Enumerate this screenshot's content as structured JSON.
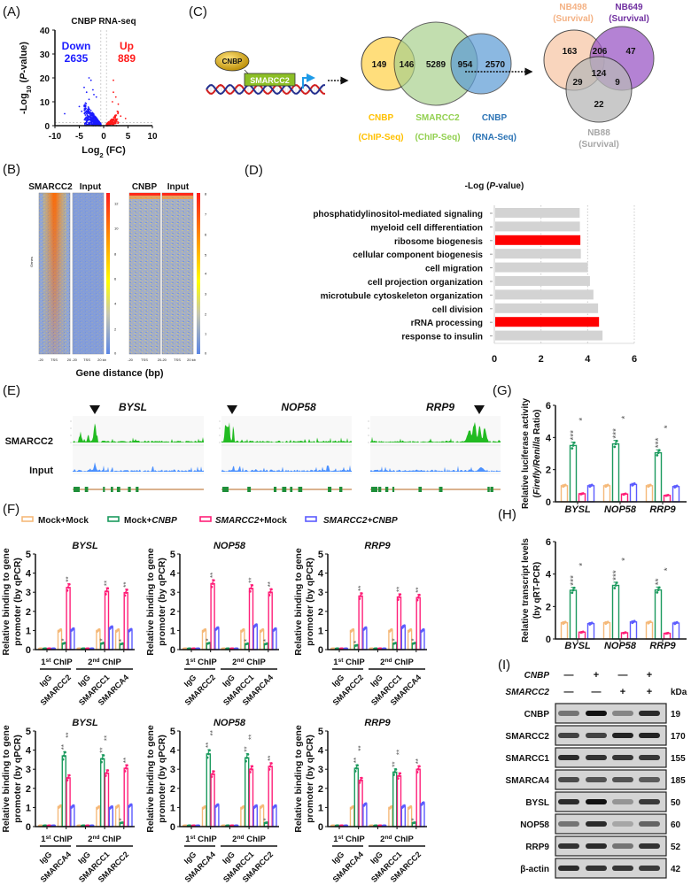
{
  "panel_labels": {
    "A": "(A)",
    "B": "(B)",
    "C": "(C)",
    "D": "(D)",
    "E": "(E)",
    "F": "(F)",
    "G": "(G)",
    "H": "(H)",
    "I": "(I)"
  },
  "colors": {
    "mock_mock": "#f5b979",
    "mock_cnbp": "#1b9a5e",
    "smarcc2_mock": "#ff1f78",
    "smarcc2_cnbp": "#5b5bff",
    "up": "#ff1a1a",
    "down": "#1a1aff",
    "go_highlight": "#ff0000",
    "go_default": "#d3d3d3",
    "star": "#555555"
  },
  "heatmap": {
    "titles": [
      "SMARCC2",
      "Input",
      "CNBP",
      "Input"
    ],
    "ylabel": "Genes",
    "xlabel": "Gene distance (bp)",
    "xticks": [
      "-20",
      "TSS",
      "20",
      "-20",
      "TSS",
      "20 kb"
    ],
    "colorbar1_ticks": [
      12,
      10,
      8,
      6,
      4,
      2,
      0
    ],
    "colorbar2_ticks": [
      8,
      7,
      6,
      5,
      4,
      3,
      2,
      1,
      0
    ]
  },
  "schematic": {
    "protein": "CNBP",
    "gene": "SMARCC2"
  },
  "venn1": {
    "sets": [
      {
        "name": "CNBP",
        "sub": "(ChIP-Seq)",
        "color": "#ffc000"
      },
      {
        "name": "SMARCC2",
        "sub": "(ChIP-Seq)",
        "color": "#92d050"
      },
      {
        "name": "CNBP",
        "sub": "(RNA-Seq)",
        "color": "#2e75b6"
      }
    ],
    "counts": {
      "cnbp_chip_only": 149,
      "cnbp_chip_smarcc2": 146,
      "smarcc2_only": 5289,
      "smarcc2_cnbp_rna": 954,
      "cnbp_rna_only": 2570
    }
  },
  "venn2": {
    "sets": [
      {
        "name": "NB498",
        "sub": "(Survival)",
        "color": "#f4b183"
      },
      {
        "name": "NB649",
        "sub": "(Survival)",
        "color": "#7030a0"
      },
      {
        "name": "NB88",
        "sub": "(Survival)",
        "color": "#a6a6a6"
      }
    ],
    "counts": {
      "nb498_only": 163,
      "nb498_nb649": 206,
      "nb649_only": 47,
      "all": 124,
      "nb498_nb88": 29,
      "nb649_nb88": 9,
      "nb88_only": 22
    }
  },
  "tracks": {
    "genes": [
      "BYSL",
      "NOP58",
      "RRP9"
    ],
    "rows": [
      "SMARCC2",
      "Input"
    ]
  },
  "legend": [
    [
      {
        "t": "Mock+Mock"
      }
    ],
    [
      {
        "t": "Mock+"
      },
      {
        "t": "CNBP",
        "i": 1
      }
    ],
    [
      {
        "t": "SMARCC2",
        "i": 1
      },
      {
        "t": "+Mock"
      }
    ],
    [
      {
        "t": "SMARCC2+CNBP",
        "i": 1
      }
    ]
  ],
  "chart_data": [
    {
      "id": "A",
      "type": "scatter",
      "title": "CNBP RNA-seq",
      "xlabel": [
        {
          "t": "Log"
        },
        {
          "t": "2",
          "s": "sub"
        },
        {
          "t": " (FC)"
        }
      ],
      "ylabel": [
        {
          "t": "-Log"
        },
        {
          "t": "10",
          "s": "sub"
        },
        {
          "t": " ("
        },
        {
          "t": "P",
          "i": 1
        },
        {
          "t": "-value)"
        }
      ],
      "xlim": [
        -10,
        10
      ],
      "ylim": [
        0,
        40
      ],
      "xticks": [
        -10,
        -5,
        0,
        5,
        10
      ],
      "yticks": [
        0,
        10,
        20,
        30,
        40
      ],
      "annotations": {
        "down_label": "Down",
        "down_count": "2635",
        "up_label": "Up",
        "up_count": "889"
      },
      "thresholds": {
        "log2fc": 0.58,
        "neg_log10_p": 1.3
      }
    },
    {
      "id": "D",
      "type": "bar",
      "orientation": "horizontal",
      "title": [
        {
          "t": "-Log ("
        },
        {
          "t": "P",
          "i": 1
        },
        {
          "t": "-value)"
        }
      ],
      "categories": [
        "phosphatidylinositol-mediated signaling",
        "myeloid cell differentiation",
        "ribosome biogenesis",
        "cellular component biogenesis",
        "cell migration",
        "cell projection organization",
        "microtubule cytoskeleton organization",
        "cell division",
        "rRNA processing",
        "response to insulin"
      ],
      "values": [
        3.62,
        3.63,
        3.65,
        3.67,
        3.97,
        4.06,
        4.21,
        4.41,
        4.45,
        4.6
      ],
      "highlighted": [
        false,
        false,
        true,
        false,
        false,
        false,
        false,
        false,
        true,
        false
      ],
      "xlim": [
        0,
        6
      ],
      "xticks": [
        0,
        2,
        4,
        6
      ],
      "grid": true
    },
    {
      "id": "F1",
      "type": "bar",
      "title": "BYSL",
      "ylim": [
        0,
        5
      ],
      "yticks": [
        0,
        1,
        2,
        3,
        4,
        5
      ],
      "ylabel": [
        "Relative binding to gene",
        "promoter (by qPCR)"
      ],
      "brackets": [
        [
          {
            "t": "1"
          },
          {
            "t": "st",
            "s": "sup"
          },
          {
            "t": " ChIP"
          }
        ],
        [
          {
            "t": "2"
          },
          {
            "t": "nd",
            "s": "sup"
          },
          {
            "t": " ChIP"
          }
        ]
      ],
      "categories": [
        "IgG",
        "SMARCC2",
        "IgG",
        "SMARCC1",
        "SMARCA4"
      ],
      "series_names": [
        "Mock+Mock",
        "Mock+CNBP",
        "SMARCC2+Mock",
        "SMARCC2+CNBP"
      ],
      "values": [
        [
          0.05,
          0.05,
          0.05,
          0.05
        ],
        [
          1.0,
          0.33,
          3.25,
          1.05
        ],
        [
          0.05,
          0.05,
          0.05,
          0.05
        ],
        [
          1.0,
          0.33,
          3.05,
          1.15
        ],
        [
          1.0,
          0.3,
          2.98,
          1.02
        ]
      ],
      "stars": [
        [
          "",
          "",
          "",
          ""
        ],
        [
          "",
          "*",
          "**",
          ""
        ],
        [
          "",
          "",
          "",
          ""
        ],
        [
          "",
          "*",
          "**",
          ""
        ],
        [
          "",
          "*",
          "**",
          ""
        ]
      ]
    },
    {
      "id": "F2",
      "type": "bar",
      "title": "NOP58",
      "ylim": [
        0,
        5
      ],
      "yticks": [
        0,
        1,
        2,
        3,
        4,
        5
      ],
      "ylabel": [
        "Relative binding to gene",
        "promoter (by qPCR)"
      ],
      "brackets": [
        [
          {
            "t": "1"
          },
          {
            "t": "st",
            "s": "sup"
          },
          {
            "t": " ChIP"
          }
        ],
        [
          {
            "t": "2"
          },
          {
            "t": "nd",
            "s": "sup"
          },
          {
            "t": " ChIP"
          }
        ]
      ],
      "categories": [
        "IgG",
        "SMARCC2",
        "IgG",
        "SMARCC1",
        "SMARCA4"
      ],
      "series_names": [
        "Mock+Mock",
        "Mock+CNBP",
        "SMARCC2+Mock",
        "SMARCC2+CNBP"
      ],
      "values": [
        [
          0.05,
          0.05,
          0.05,
          0.05
        ],
        [
          1.0,
          0.33,
          3.45,
          1.1
        ],
        [
          0.05,
          0.05,
          0.05,
          0.05
        ],
        [
          1.0,
          0.3,
          3.2,
          1.25
        ],
        [
          1.0,
          0.3,
          3.0,
          1.05
        ]
      ],
      "stars": [
        [
          "",
          "",
          "",
          ""
        ],
        [
          "",
          "*",
          "**",
          ""
        ],
        [
          "",
          "",
          "",
          ""
        ],
        [
          "",
          "*",
          "**",
          ""
        ],
        [
          "",
          "*",
          "**",
          ""
        ]
      ]
    },
    {
      "id": "F3",
      "type": "bar",
      "title": "RRP9",
      "ylim": [
        0,
        5
      ],
      "yticks": [
        0,
        1,
        2,
        3,
        4,
        5
      ],
      "ylabel": [
        "Relative binding to gene",
        "promoter (by qPCR)"
      ],
      "brackets": [
        [
          {
            "t": "1"
          },
          {
            "t": "st",
            "s": "sup"
          },
          {
            "t": " ChIP"
          }
        ],
        [
          {
            "t": "2"
          },
          {
            "t": "nd",
            "s": "sup"
          },
          {
            "t": " ChIP"
          }
        ]
      ],
      "categories": [
        "IgG",
        "SMARCC2",
        "IgG",
        "SMARCC1",
        "SMARCA4"
      ],
      "series_names": [
        "Mock+Mock",
        "Mock+CNBP",
        "SMARCC2+Mock",
        "SMARCC2+CNBP"
      ],
      "values": [
        [
          0.05,
          0.05,
          0.05,
          0.05
        ],
        [
          1.0,
          0.22,
          2.8,
          1.1
        ],
        [
          0.05,
          0.05,
          0.05,
          0.05
        ],
        [
          1.0,
          0.33,
          2.75,
          1.2
        ],
        [
          1.0,
          0.33,
          2.72,
          1.0
        ]
      ],
      "stars": [
        [
          "",
          "",
          "",
          ""
        ],
        [
          "",
          "*",
          "**",
          ""
        ],
        [
          "",
          "",
          "",
          ""
        ],
        [
          "",
          "*",
          "**",
          ""
        ],
        [
          "",
          "*",
          "**",
          ""
        ]
      ]
    },
    {
      "id": "F4",
      "type": "bar",
      "title": "BYSL",
      "ylim": [
        0,
        5
      ],
      "yticks": [
        0,
        1,
        2,
        3,
        4,
        5
      ],
      "ylabel": [
        "Relative binding to gene",
        "promoter (by qPCR)"
      ],
      "brackets": [
        [
          {
            "t": "1"
          },
          {
            "t": "st",
            "s": "sup"
          },
          {
            "t": " ChIP"
          }
        ],
        [
          {
            "t": "2"
          },
          {
            "t": "nd",
            "s": "sup"
          },
          {
            "t": " ChIP"
          }
        ]
      ],
      "categories": [
        "IgG",
        "SMARCA4",
        "IgG",
        "SMARCC1",
        "SMARCC2"
      ],
      "series_names": [
        "Mock+Mock",
        "Mock+CNBP",
        "SMARCC2+Mock",
        "SMARCC2+CNBP"
      ],
      "values": [
        [
          0.05,
          0.05,
          0.05,
          0.05
        ],
        [
          1.05,
          3.7,
          2.55,
          1.05
        ],
        [
          0.05,
          0.05,
          0.05,
          0.05
        ],
        [
          1.0,
          3.55,
          2.8,
          1.0
        ],
        [
          1.05,
          0.2,
          3.05,
          1.1
        ]
      ],
      "stars": [
        [
          "",
          "",
          "",
          ""
        ],
        [
          "",
          "**",
          "**",
          ""
        ],
        [
          "",
          "",
          "",
          ""
        ],
        [
          "",
          "**",
          "**",
          ""
        ],
        [
          "",
          "*",
          "**",
          ""
        ]
      ]
    },
    {
      "id": "F5",
      "type": "bar",
      "title": "NOP58",
      "ylim": [
        0,
        5
      ],
      "yticks": [
        0,
        1,
        2,
        3,
        4,
        5
      ],
      "ylabel": [
        "Relative binding to gene",
        "promoter (by qPCR)"
      ],
      "brackets": [
        [
          {
            "t": "1"
          },
          {
            "t": "st",
            "s": "sup"
          },
          {
            "t": " ChIP"
          }
        ],
        [
          {
            "t": "2"
          },
          {
            "t": "nd",
            "s": "sup"
          },
          {
            "t": " ChIP"
          }
        ]
      ],
      "categories": [
        "IgG",
        "SMARCA4",
        "IgG",
        "SMARCC1",
        "SMARCC2"
      ],
      "series_names": [
        "Mock+Mock",
        "Mock+CNBP",
        "SMARCC2+Mock",
        "SMARCC2+CNBP"
      ],
      "values": [
        [
          0.05,
          0.05,
          0.05,
          0.05
        ],
        [
          1.0,
          3.8,
          2.75,
          1.1
        ],
        [
          0.05,
          0.05,
          0.05,
          0.05
        ],
        [
          1.0,
          3.6,
          3.0,
          1.05
        ],
        [
          1.05,
          0.2,
          3.15,
          1.05
        ]
      ],
      "stars": [
        [
          "",
          "",
          "",
          ""
        ],
        [
          "",
          "**",
          "**",
          ""
        ],
        [
          "",
          "",
          "",
          ""
        ],
        [
          "",
          "**",
          "**",
          ""
        ],
        [
          "",
          "*",
          "**",
          ""
        ]
      ]
    },
    {
      "id": "F6",
      "type": "bar",
      "title": "RRP9",
      "ylim": [
        0,
        5
      ],
      "yticks": [
        0,
        1,
        2,
        3,
        4,
        5
      ],
      "ylabel": [
        "Relative binding to gene",
        "promoter (by qPCR)"
      ],
      "brackets": [
        [
          {
            "t": "1"
          },
          {
            "t": "st",
            "s": "sup"
          },
          {
            "t": " ChIP"
          }
        ],
        [
          {
            "t": "2"
          },
          {
            "t": "nd",
            "s": "sup"
          },
          {
            "t": " ChIP"
          }
        ]
      ],
      "categories": [
        "IgG",
        "SMARCA4",
        "IgG",
        "SMARCC1",
        "SMARCC2"
      ],
      "series_names": [
        "Mock+Mock",
        "Mock+CNBP",
        "SMARCC2+Mock",
        "SMARCC2+CNBP"
      ],
      "values": [
        [
          0.05,
          0.05,
          0.05,
          0.05
        ],
        [
          1.0,
          3.05,
          2.42,
          1.15
        ],
        [
          0.05,
          0.05,
          0.05,
          0.05
        ],
        [
          1.0,
          2.85,
          2.65,
          1.05
        ],
        [
          1.0,
          0.2,
          3.0,
          1.2
        ]
      ],
      "stars": [
        [
          "",
          "",
          "",
          ""
        ],
        [
          "",
          "**",
          "**",
          ""
        ],
        [
          "",
          "",
          "",
          ""
        ],
        [
          "",
          "**",
          "**",
          ""
        ],
        [
          "",
          "*",
          "**",
          ""
        ]
      ]
    },
    {
      "id": "G",
      "type": "bar",
      "ylim": [
        0,
        6
      ],
      "yticks": [
        0,
        2,
        4,
        6
      ],
      "ylabel": [
        [
          {
            "t": "Relative luciferase activity"
          }
        ],
        [
          {
            "t": "("
          },
          {
            "t": "Firefly/Renilla",
            "i": 1
          },
          {
            "t": " Ratio)"
          }
        ]
      ],
      "categories": [
        "BYSL",
        "NOP58",
        "RRP9"
      ],
      "series_names": [
        "Mock+Mock",
        "Mock+CNBP",
        "SMARCC2+Mock",
        "SMARCC2+CNBP"
      ],
      "values": [
        [
          1.0,
          3.5,
          0.5,
          1.0
        ],
        [
          1.0,
          3.6,
          0.48,
          1.08
        ],
        [
          1.0,
          3.05,
          0.4,
          0.95
        ]
      ],
      "stars": [
        [
          "",
          "***",
          "*",
          ""
        ],
        [
          "",
          "***",
          "*",
          ""
        ],
        [
          "",
          "***",
          "*",
          ""
        ]
      ]
    },
    {
      "id": "H",
      "type": "bar",
      "ylim": [
        0,
        6
      ],
      "yticks": [
        0,
        2,
        4,
        6
      ],
      "ylabel": [
        [
          {
            "t": "Relative transcript levels"
          }
        ],
        [
          {
            "t": "(by qRT-PCR)"
          }
        ]
      ],
      "categories": [
        "BYSL",
        "NOP58",
        "RRP9"
      ],
      "series_names": [
        "Mock+Mock",
        "Mock+CNBP",
        "SMARCC2+Mock",
        "SMARCC2+CNBP"
      ],
      "values": [
        [
          1.0,
          3.0,
          0.42,
          0.95
        ],
        [
          1.0,
          3.3,
          0.38,
          1.05
        ],
        [
          1.02,
          3.02,
          0.35,
          0.98
        ]
      ],
      "stars": [
        [
          "",
          "***",
          "*",
          ""
        ],
        [
          "",
          "***",
          "*",
          ""
        ],
        [
          "",
          "**",
          "*",
          ""
        ]
      ]
    }
  ],
  "western": {
    "conditions": [
      {
        "name": "CNBP",
        "lanes": [
          "—",
          "+",
          "—",
          "+"
        ]
      },
      {
        "name": "SMARCC2",
        "lanes": [
          "—",
          "—",
          "+",
          "+"
        ]
      }
    ],
    "kda_label": "kDa",
    "rows": [
      {
        "protein": "CNBP",
        "kda": "19",
        "intensity": [
          0.4,
          1,
          0.3,
          0.85
        ]
      },
      {
        "protein": "SMARCC2",
        "kda": "170",
        "intensity": [
          0.7,
          0.7,
          0.9,
          0.9
        ]
      },
      {
        "protein": "SMARCC1",
        "kda": "155",
        "intensity": [
          0.85,
          0.8,
          0.78,
          0.78
        ]
      },
      {
        "protein": "SMARCA4",
        "kda": "185",
        "intensity": [
          0.65,
          0.6,
          0.6,
          0.55
        ]
      },
      {
        "protein": "BYSL",
        "kda": "50",
        "intensity": [
          0.85,
          1,
          0.2,
          0.75
        ]
      },
      {
        "protein": "NOP58",
        "kda": "60",
        "intensity": [
          0.4,
          0.85,
          0.1,
          0.5
        ]
      },
      {
        "protein": "RRP9",
        "kda": "52",
        "intensity": [
          0.8,
          0.85,
          0.4,
          0.8
        ]
      },
      {
        "protein": "β-actin",
        "kda": "42",
        "intensity": [
          0.85,
          0.8,
          0.78,
          0.75
        ]
      }
    ]
  }
}
